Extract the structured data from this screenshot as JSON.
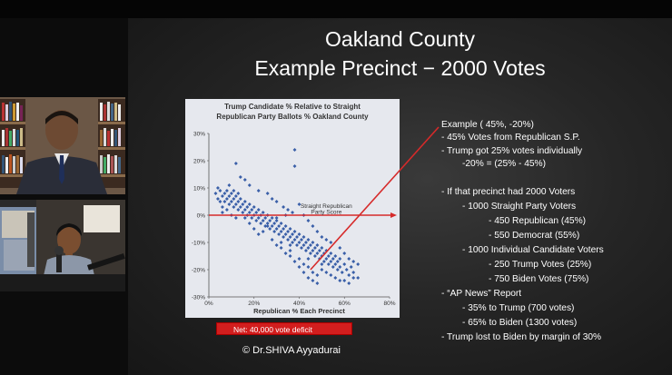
{
  "slide": {
    "title_line1": "Oakland County",
    "title_line2": "Example Precinct − 2000 Votes",
    "footer": "© Dr.SHIVA Ayyadurai",
    "net_box": "Net:  40,000 vote deficit",
    "text_lines": [
      "Example ( 45%, -20%)",
      "-   45% Votes from Republican S.P.",
      "-   Trump got 25% votes individually",
      "-20% = (25% - 45%)",
      "-   If that precinct had 2000  Voters",
      "-   1000  Straight Party Voters",
      "-   450 Republican (45%)",
      "-   550 Democrat   (55%)",
      "-   1000 Individual Candidate Voters",
      "-   250 Trump Votes (25%)",
      "-   750 Biden Votes (75%)",
      "-   “AP News” Report",
      "-   35% to Trump (700 votes)",
      "-   65% to Biden (1300 votes)",
      "-   Trump lost to Biden by margin of 30%"
    ]
  },
  "video": {
    "speaker_cam": "speaker",
    "host_cam": "host"
  },
  "colors": {
    "marker": "#3a5fa8",
    "red_line": "#d62a2a",
    "net_box": "#d21e1e"
  },
  "chart_data": {
    "type": "scatter",
    "title": "Trump Candidate % Relative to Straight Republican Party Ballots % Oakland County",
    "title_lines": [
      "Trump Candidate % Relative to Straight",
      "Republican Party Ballots % Oakland County"
    ],
    "xlabel": "Republican % Each Precinct",
    "ylabel": "",
    "xlim": [
      0,
      80
    ],
    "ylim": [
      -30,
      30
    ],
    "x_ticks": [
      "0%",
      "20%",
      "40%",
      "60%",
      "80%"
    ],
    "y_ticks": [
      "30%",
      "20%",
      "10%",
      "0%",
      "-10%",
      "-20%",
      "-30%"
    ],
    "grid": false,
    "annotation": "Straight Republican Party Score",
    "annotation_lines": [
      "Straight Republican",
      "Party Score"
    ],
    "reference_line_y": 0,
    "highlight_point": [
      45,
      -20
    ],
    "points": [
      [
        3,
        8
      ],
      [
        4,
        6
      ],
      [
        4,
        10
      ],
      [
        5,
        5
      ],
      [
        5,
        9
      ],
      [
        6,
        7
      ],
      [
        6,
        3
      ],
      [
        7,
        8
      ],
      [
        7,
        5
      ],
      [
        8,
        6
      ],
      [
        8,
        9
      ],
      [
        9,
        4
      ],
      [
        9,
        7
      ],
      [
        10,
        5
      ],
      [
        10,
        8
      ],
      [
        11,
        3
      ],
      [
        11,
        6
      ],
      [
        12,
        4
      ],
      [
        12,
        7
      ],
      [
        13,
        2
      ],
      [
        13,
        5
      ],
      [
        14,
        3
      ],
      [
        14,
        6
      ],
      [
        15,
        1
      ],
      [
        15,
        4
      ],
      [
        16,
        2
      ],
      [
        16,
        5
      ],
      [
        17,
        0
      ],
      [
        17,
        3
      ],
      [
        18,
        1
      ],
      [
        18,
        4
      ],
      [
        19,
        -1
      ],
      [
        19,
        2
      ],
      [
        20,
        0
      ],
      [
        20,
        3
      ],
      [
        21,
        -2
      ],
      [
        21,
        1
      ],
      [
        22,
        -1
      ],
      [
        22,
        2
      ],
      [
        23,
        -3
      ],
      [
        23,
        0
      ],
      [
        24,
        -2
      ],
      [
        24,
        1
      ],
      [
        25,
        -4
      ],
      [
        25,
        -1
      ],
      [
        26,
        -3
      ],
      [
        26,
        0
      ],
      [
        27,
        -5
      ],
      [
        27,
        -2
      ],
      [
        28,
        -4
      ],
      [
        28,
        -1
      ],
      [
        29,
        -6
      ],
      [
        29,
        -3
      ],
      [
        30,
        -5
      ],
      [
        30,
        -2
      ],
      [
        31,
        -7
      ],
      [
        31,
        -4
      ],
      [
        32,
        -6
      ],
      [
        32,
        -3
      ],
      [
        33,
        -8
      ],
      [
        33,
        -5
      ],
      [
        34,
        -7
      ],
      [
        34,
        -4
      ],
      [
        35,
        -9
      ],
      [
        35,
        -6
      ],
      [
        36,
        -8
      ],
      [
        36,
        -5
      ],
      [
        37,
        -10
      ],
      [
        37,
        -7
      ],
      [
        38,
        -9
      ],
      [
        38,
        -6
      ],
      [
        39,
        -11
      ],
      [
        39,
        -8
      ],
      [
        40,
        -10
      ],
      [
        40,
        -7
      ],
      [
        41,
        -12
      ],
      [
        41,
        -9
      ],
      [
        42,
        -11
      ],
      [
        42,
        -8
      ],
      [
        43,
        -13
      ],
      [
        43,
        -10
      ],
      [
        44,
        -12
      ],
      [
        44,
        -9
      ],
      [
        45,
        -14
      ],
      [
        45,
        -11
      ],
      [
        46,
        -13
      ],
      [
        46,
        -10
      ],
      [
        47,
        -15
      ],
      [
        47,
        -12
      ],
      [
        48,
        -14
      ],
      [
        48,
        -11
      ],
      [
        49,
        -16
      ],
      [
        49,
        -13
      ],
      [
        50,
        -15
      ],
      [
        50,
        -12
      ],
      [
        51,
        -17
      ],
      [
        51,
        -14
      ],
      [
        52,
        -16
      ],
      [
        52,
        -13
      ],
      [
        53,
        -18
      ],
      [
        53,
        -15
      ],
      [
        54,
        -17
      ],
      [
        54,
        -14
      ],
      [
        55,
        -19
      ],
      [
        55,
        -16
      ],
      [
        56,
        -18
      ],
      [
        56,
        -15
      ],
      [
        57,
        -20
      ],
      [
        57,
        -17
      ],
      [
        58,
        -19
      ],
      [
        58,
        -16
      ],
      [
        59,
        -21
      ],
      [
        60,
        -18
      ],
      [
        61,
        -20
      ],
      [
        62,
        -22
      ],
      [
        63,
        -19
      ],
      [
        64,
        -21
      ],
      [
        66,
        -23
      ],
      [
        12,
        19
      ],
      [
        14,
        14
      ],
      [
        16,
        13
      ],
      [
        18,
        11
      ],
      [
        22,
        9
      ],
      [
        26,
        8
      ],
      [
        28,
        6
      ],
      [
        30,
        5
      ],
      [
        33,
        3
      ],
      [
        35,
        2
      ],
      [
        37,
        1
      ],
      [
        38,
        18
      ],
      [
        38,
        24
      ],
      [
        40,
        4
      ],
      [
        42,
        0
      ],
      [
        44,
        -2
      ],
      [
        46,
        -4
      ],
      [
        48,
        -6
      ],
      [
        50,
        -8
      ],
      [
        52,
        -9
      ],
      [
        24,
        -6
      ],
      [
        28,
        -9
      ],
      [
        30,
        -11
      ],
      [
        32,
        -12
      ],
      [
        34,
        -14
      ],
      [
        36,
        -15
      ],
      [
        38,
        -17
      ],
      [
        40,
        -19
      ],
      [
        42,
        -21
      ],
      [
        44,
        -23
      ],
      [
        46,
        -24
      ],
      [
        48,
        -25
      ],
      [
        36,
        -13
      ],
      [
        40,
        -16
      ],
      [
        42,
        -18
      ],
      [
        44,
        -19
      ],
      [
        46,
        -21
      ],
      [
        48,
        -22
      ],
      [
        50,
        -20
      ],
      [
        52,
        -21
      ],
      [
        54,
        -22
      ],
      [
        56,
        -23
      ],
      [
        58,
        -24
      ],
      [
        60,
        -24
      ],
      [
        62,
        -25
      ],
      [
        64,
        -23
      ],
      [
        18,
        -3
      ],
      [
        16,
        -1
      ],
      [
        20,
        -5
      ],
      [
        22,
        -7
      ],
      [
        26,
        -4
      ],
      [
        30,
        -1
      ],
      [
        34,
        0
      ],
      [
        32,
        -10
      ],
      [
        36,
        -11
      ],
      [
        44,
        -16
      ],
      [
        50,
        -18
      ],
      [
        54,
        -10
      ],
      [
        58,
        -12
      ],
      [
        60,
        -14
      ],
      [
        62,
        -16
      ],
      [
        64,
        -17
      ],
      [
        66,
        -18
      ],
      [
        6,
        1
      ],
      [
        8,
        2
      ],
      [
        10,
        0
      ],
      [
        12,
        -1
      ],
      [
        9,
        11
      ],
      [
        11,
        9
      ],
      [
        13,
        8
      ]
    ]
  }
}
